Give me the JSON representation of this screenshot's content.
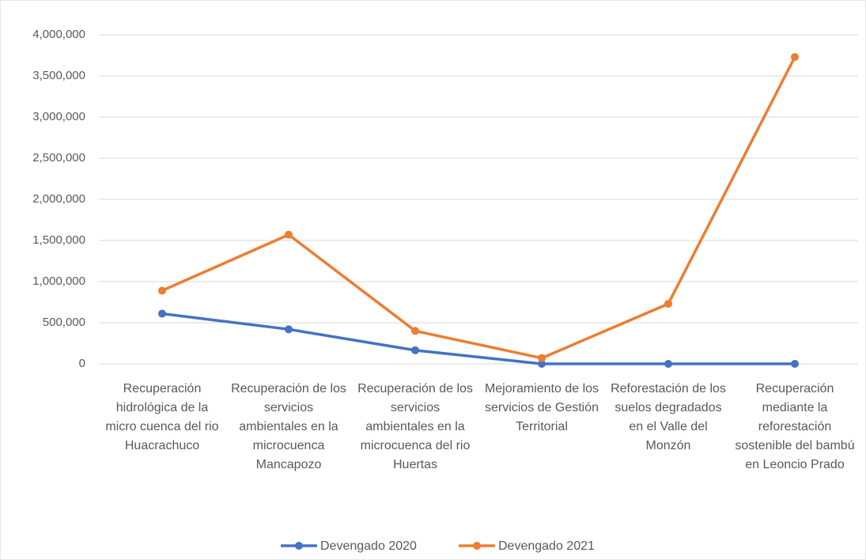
{
  "chart_data": {
    "type": "line",
    "categories": [
      "Recuperación hidrológica de la micro cuenca del rio Huacrachuco",
      "Recuperación de los servicios ambientales en la microcuenca Mancapozo",
      "Recuperación de los servicios ambientales en la microcuenca del rio Huertas",
      "Mejoramiento de los servicios de Gestión Territorial",
      "Reforestación de los suelos degradados en el Valle del Monzón",
      "Recuperación mediante la reforestación sostenible del bambú en Leoncio Prado"
    ],
    "series": [
      {
        "name": "Devengado 2020",
        "color": "#4472c4",
        "values": [
          610000,
          420000,
          165000,
          0,
          0,
          0
        ]
      },
      {
        "name": "Devengado 2021",
        "color": "#ed7d31",
        "values": [
          890000,
          1570000,
          400000,
          70000,
          730000,
          3730000
        ]
      }
    ],
    "ylim": [
      0,
      4000000
    ],
    "yticks": [
      0,
      {
        "value": 500000,
        "label": "500,000"
      },
      {
        "value": 1000000,
        "label": "1,000,000"
      },
      {
        "value": 1500000,
        "label": "1,500,000"
      },
      {
        "value": 2000000,
        "label": "2,000,000"
      },
      {
        "value": 2500000,
        "label": "2,500,000"
      },
      {
        "value": 3000000,
        "label": "3,000,000"
      },
      {
        "value": 3500000,
        "label": "3,500,000"
      },
      {
        "value": 4000000,
        "label": "4,000,000"
      }
    ],
    "grid": true,
    "legend": "bottom"
  }
}
